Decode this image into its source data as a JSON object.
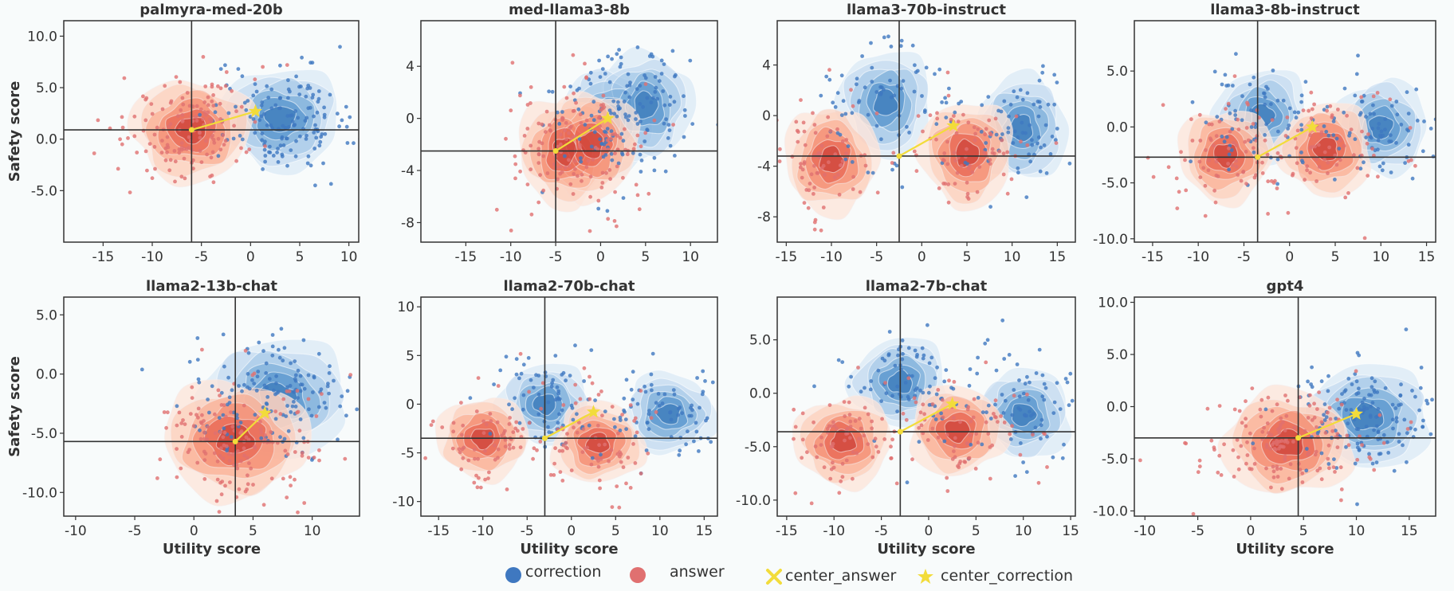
{
  "colors": {
    "correction": "#3f78c0",
    "answer": "#e07070",
    "center": "#f2dc3a",
    "frame": "#333333",
    "background": "#f8fbfb"
  },
  "legend": [
    {
      "label": "correction",
      "marker": "dot-blue"
    },
    {
      "label": "answer",
      "marker": "dot-red"
    },
    {
      "label": "center_answer",
      "marker": "x-yellow"
    },
    {
      "label": "center_correction",
      "marker": "star-yellow"
    }
  ],
  "chart_data": [
    {
      "type": "scatter",
      "title": "palmyra-med-20b",
      "xlabel": "",
      "ylabel": "Safety score",
      "xlim": [
        -19,
        11
      ],
      "ylim": [
        -10,
        11.5
      ],
      "xticks": [
        -15,
        -10,
        -5,
        0,
        5,
        10
      ],
      "xtick_labels": [
        "-15",
        "-10",
        "-5",
        "0",
        "5",
        "10"
      ],
      "yticks": [
        -5,
        0,
        5,
        10
      ],
      "ytick_labels": [
        "-5.0",
        "0.0",
        "5.0",
        "10.0"
      ],
      "center_answer": [
        -6,
        0.9
      ],
      "center_correction": [
        0.5,
        2.7
      ],
      "answer_clusters": [
        [
          -6,
          0.9
        ]
      ],
      "correction_clusters": [
        [
          3,
          2
        ]
      ]
    },
    {
      "type": "scatter",
      "title": "med-llama3-8b",
      "xlabel": "",
      "ylabel": "",
      "xlim": [
        -20,
        13
      ],
      "ylim": [
        -9.5,
        7.5
      ],
      "xticks": [
        -15,
        -10,
        -5,
        0,
        5,
        10
      ],
      "xtick_labels": [
        "-15",
        "-10",
        "-5",
        "0",
        "5",
        "10"
      ],
      "yticks": [
        -8,
        -4,
        0,
        4
      ],
      "ytick_labels": [
        "-8",
        "-4",
        "0",
        "4"
      ],
      "center_answer": [
        -5,
        -2.5
      ],
      "center_correction": [
        0.8,
        0
      ],
      "answer_clusters": [
        [
          -4,
          -2.5
        ],
        [
          -1,
          -2
        ]
      ],
      "correction_clusters": [
        [
          1,
          0
        ],
        [
          5,
          1
        ]
      ]
    },
    {
      "type": "scatter",
      "title": "llama3-70b-instruct",
      "xlabel": "",
      "ylabel": "",
      "xlim": [
        -16,
        17
      ],
      "ylim": [
        -10,
        7.5
      ],
      "xticks": [
        -15,
        -10,
        -5,
        0,
        5,
        10,
        15
      ],
      "xtick_labels": [
        "-15",
        "-10",
        "-5",
        "0",
        "5",
        "10",
        "15"
      ],
      "yticks": [
        -8,
        -4,
        0,
        4
      ],
      "ytick_labels": [
        "-8",
        "-4",
        "0",
        "4"
      ],
      "center_answer": [
        -2.5,
        -3.2
      ],
      "center_correction": [
        3.5,
        -0.8
      ],
      "answer_clusters": [
        [
          -10,
          -3.5
        ],
        [
          5,
          -3
        ]
      ],
      "correction_clusters": [
        [
          -4,
          1
        ],
        [
          11,
          -1
        ]
      ]
    },
    {
      "type": "scatter",
      "title": "llama3-8b-instruct",
      "xlabel": "",
      "ylabel": "",
      "xlim": [
        -17,
        16
      ],
      "ylim": [
        -10.3,
        9.5
      ],
      "xticks": [
        -15,
        -10,
        -5,
        0,
        5,
        10,
        15
      ],
      "xtick_labels": [
        "-15",
        "-10",
        "-5",
        "0",
        "5",
        "10",
        "15"
      ],
      "yticks": [
        -10,
        -5,
        0,
        5
      ],
      "ytick_labels": [
        "-10.0",
        "-5.0",
        "0.0",
        "5.0"
      ],
      "center_answer": [
        -3.5,
        -2.7
      ],
      "center_correction": [
        2.5,
        0
      ],
      "answer_clusters": [
        [
          -7,
          -2.5
        ],
        [
          4,
          -2
        ]
      ],
      "correction_clusters": [
        [
          -3,
          1
        ],
        [
          10,
          0
        ]
      ]
    },
    {
      "type": "scatter",
      "title": "llama2-13b-chat",
      "xlabel": "Utility score",
      "ylabel": "Safety score",
      "xlim": [
        -11,
        14
      ],
      "ylim": [
        -12,
        6.5
      ],
      "xticks": [
        -10,
        -5,
        0,
        5,
        10
      ],
      "xtick_labels": [
        "-10",
        "-5",
        "0",
        "5",
        "10"
      ],
      "yticks": [
        -10,
        -5,
        0,
        5
      ],
      "ytick_labels": [
        "-10.0",
        "-5.0",
        "0.0",
        "5.0"
      ],
      "center_answer": [
        3.5,
        -5.7
      ],
      "center_correction": [
        6,
        -3.3
      ],
      "answer_clusters": [
        [
          3.5,
          -5.5
        ]
      ],
      "correction_clusters": [
        [
          7,
          -2
        ]
      ]
    },
    {
      "type": "scatter",
      "title": "llama2-70b-chat",
      "xlabel": "Utility score",
      "ylabel": "",
      "xlim": [
        -17,
        16.5
      ],
      "ylim": [
        -11.5,
        11
      ],
      "xticks": [
        -15,
        -10,
        -5,
        0,
        5,
        10,
        15
      ],
      "xtick_labels": [
        "-15",
        "-10",
        "-5",
        "0",
        "5",
        "10",
        "15"
      ],
      "yticks": [
        -10,
        -5,
        0,
        5,
        10
      ],
      "ytick_labels": [
        "-10",
        "-5",
        "0",
        "5",
        "10"
      ],
      "center_answer": [
        -3,
        -3.5
      ],
      "center_correction": [
        2.5,
        -0.8
      ],
      "answer_clusters": [
        [
          -10,
          -3.5
        ],
        [
          3,
          -4
        ]
      ],
      "correction_clusters": [
        [
          -3,
          0
        ],
        [
          11,
          -1
        ]
      ]
    },
    {
      "type": "scatter",
      "title": "llama2-7b-chat",
      "xlabel": "Utility score",
      "ylabel": "",
      "xlim": [
        -16,
        15.5
      ],
      "ylim": [
        -11.5,
        9
      ],
      "xticks": [
        -15,
        -10,
        -5,
        0,
        5,
        10,
        15
      ],
      "xtick_labels": [
        "-15",
        "-10",
        "-5",
        "0",
        "5",
        "10",
        "15"
      ],
      "yticks": [
        -10,
        -5,
        0,
        5
      ],
      "ytick_labels": [
        "-10.0",
        "-5.0",
        "0.0",
        "5.0"
      ],
      "center_answer": [
        -3,
        -3.6
      ],
      "center_correction": [
        2.5,
        -1
      ],
      "answer_clusters": [
        [
          -9,
          -4.5
        ],
        [
          3,
          -3.5
        ]
      ],
      "correction_clusters": [
        [
          -3,
          1
        ],
        [
          10,
          -2
        ]
      ]
    },
    {
      "type": "scatter",
      "title": "gpt4",
      "xlabel": "Utility score",
      "ylabel": "",
      "xlim": [
        -11,
        17.5
      ],
      "ylim": [
        -10.5,
        10.5
      ],
      "xticks": [
        -10,
        -5,
        0,
        5,
        10,
        15
      ],
      "xtick_labels": [
        "-10",
        "-5",
        "0",
        "5",
        "10",
        "15"
      ],
      "yticks": [
        -10,
        -5,
        0,
        5,
        10
      ],
      "ytick_labels": [
        "-10.0",
        "-5.0",
        "0.0",
        "5.0",
        "10.0"
      ],
      "center_answer": [
        4.5,
        -3
      ],
      "center_correction": [
        10,
        -0.7
      ],
      "answer_clusters": [
        [
          3.5,
          -3.5
        ]
      ],
      "correction_clusters": [
        [
          11,
          -1
        ]
      ]
    }
  ]
}
